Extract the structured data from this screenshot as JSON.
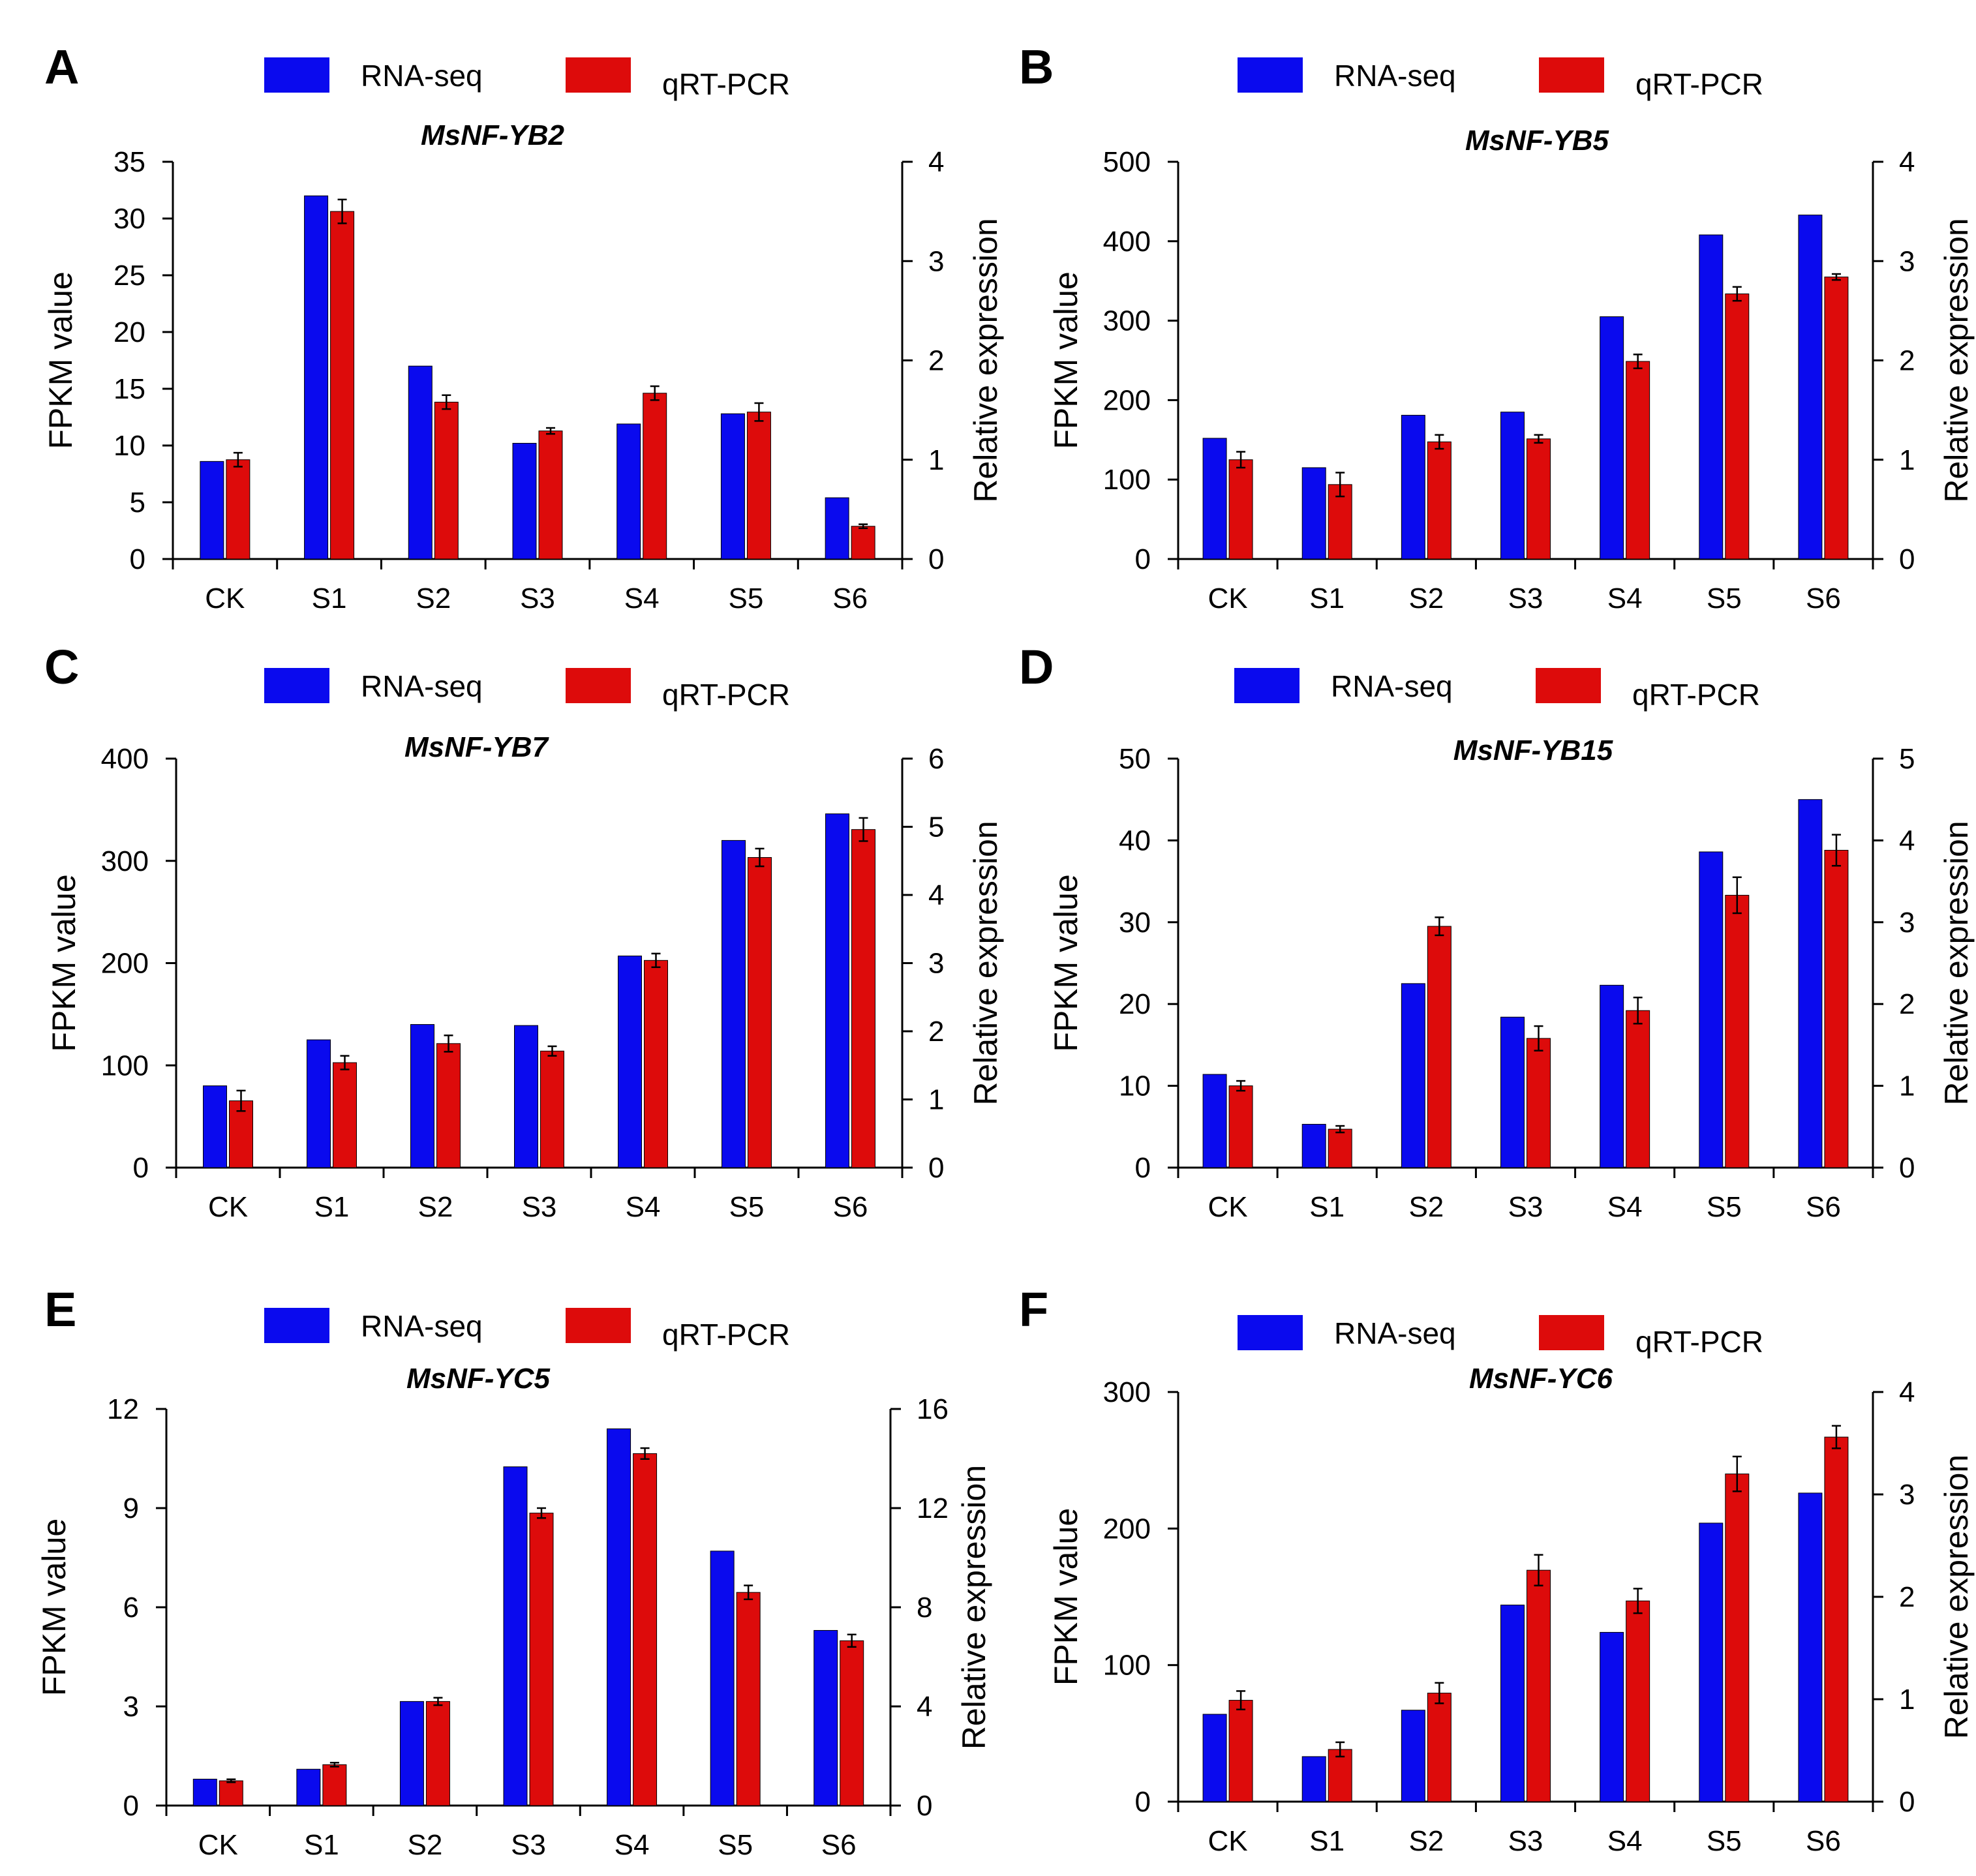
{
  "figure": {
    "legend": [
      "RNA-seq",
      "qRT-PCR"
    ]
  },
  "colors": {
    "rnaseq": "#0a0aee",
    "qrtpcr": "#dd0b0b",
    "axis": "#000000"
  },
  "chart_data": [
    {
      "panel": "A",
      "type": "bar",
      "title": "MsNF-YB2",
      "categories": [
        "CK",
        "S1",
        "S2",
        "S3",
        "S4",
        "S5",
        "S6"
      ],
      "ylabel": "FPKM value",
      "y2label": "Relative expression",
      "ylim": [
        0,
        35
      ],
      "yticks": [
        0,
        5,
        10,
        15,
        20,
        25,
        30,
        35
      ],
      "y2lim": [
        0,
        4
      ],
      "y2ticks": [
        0,
        1,
        2,
        3,
        4
      ],
      "series": [
        {
          "name": "RNA-seq",
          "axis": "left",
          "values": [
            8.6,
            32,
            17,
            10.2,
            11.9,
            12.8,
            5.4
          ]
        },
        {
          "name": "qRT-PCR",
          "axis": "right",
          "values": [
            1.0,
            3.5,
            1.58,
            1.29,
            1.67,
            1.48,
            0.33
          ],
          "errors": [
            0.07,
            0.12,
            0.07,
            0.03,
            0.07,
            0.09,
            0.02
          ]
        }
      ]
    },
    {
      "panel": "B",
      "type": "bar",
      "title": "MsNF-YB5",
      "categories": [
        "CK",
        "S1",
        "S2",
        "S3",
        "S4",
        "S5",
        "S6"
      ],
      "ylabel": "FPKM value",
      "y2label": "Relative expression",
      "ylim": [
        0,
        500
      ],
      "yticks": [
        0,
        100,
        200,
        300,
        400,
        500
      ],
      "y2lim": [
        0,
        4
      ],
      "y2ticks": [
        0,
        1,
        2,
        3,
        4
      ],
      "series": [
        {
          "name": "RNA-seq",
          "axis": "left",
          "values": [
            152,
            115,
            181,
            185,
            305,
            408,
            433
          ]
        },
        {
          "name": "qRT-PCR",
          "axis": "right",
          "values": [
            1.0,
            0.75,
            1.18,
            1.21,
            1.99,
            2.67,
            2.84
          ],
          "errors": [
            0.08,
            0.12,
            0.07,
            0.04,
            0.07,
            0.07,
            0.03
          ]
        }
      ]
    },
    {
      "panel": "C",
      "type": "bar",
      "title": "MsNF-YB7",
      "categories": [
        "CK",
        "S1",
        "S2",
        "S3",
        "S4",
        "S5",
        "S6"
      ],
      "ylabel": "FPKM value",
      "y2label": "Relative expression",
      "ylim": [
        0,
        400
      ],
      "yticks": [
        0,
        100,
        200,
        300,
        400
      ],
      "y2lim": [
        0,
        6
      ],
      "y2ticks": [
        0,
        1,
        2,
        3,
        4,
        5,
        6
      ],
      "series": [
        {
          "name": "RNA-seq",
          "axis": "left",
          "values": [
            80,
            125,
            140,
            139,
            207,
            320,
            346
          ]
        },
        {
          "name": "qRT-PCR",
          "axis": "right",
          "values": [
            0.98,
            1.54,
            1.82,
            1.71,
            3.04,
            4.55,
            4.96
          ],
          "errors": [
            0.15,
            0.1,
            0.12,
            0.07,
            0.1,
            0.13,
            0.17
          ]
        }
      ]
    },
    {
      "panel": "D",
      "type": "bar",
      "title": "MsNF-YB15",
      "categories": [
        "CK",
        "S1",
        "S2",
        "S3",
        "S4",
        "S5",
        "S6"
      ],
      "ylabel": "FPKM value",
      "y2label": "Relative expression",
      "ylim": [
        0,
        50
      ],
      "yticks": [
        0,
        10,
        20,
        30,
        40,
        50
      ],
      "y2lim": [
        0,
        5
      ],
      "y2ticks": [
        0,
        1,
        2,
        3,
        4,
        5
      ],
      "series": [
        {
          "name": "RNA-seq",
          "axis": "left",
          "values": [
            11.4,
            5.3,
            22.5,
            18.4,
            22.3,
            38.6,
            45
          ]
        },
        {
          "name": "qRT-PCR",
          "axis": "right",
          "values": [
            1.0,
            0.47,
            2.95,
            1.58,
            1.92,
            3.33,
            3.88
          ],
          "errors": [
            0.06,
            0.04,
            0.11,
            0.15,
            0.16,
            0.22,
            0.19
          ]
        }
      ]
    },
    {
      "panel": "E",
      "type": "bar",
      "title": "MsNF-YC5",
      "categories": [
        "CK",
        "S1",
        "S2",
        "S3",
        "S4",
        "S5",
        "S6"
      ],
      "ylabel": "FPKM value",
      "y2label": "Relative expression",
      "ylim": [
        0,
        12
      ],
      "yticks": [
        0,
        3,
        6,
        9,
        12
      ],
      "y2lim": [
        0,
        16
      ],
      "y2ticks": [
        0,
        4,
        8,
        12,
        16
      ],
      "series": [
        {
          "name": "RNA-seq",
          "axis": "left",
          "values": [
            0.8,
            1.1,
            3.15,
            10.25,
            11.4,
            7.7,
            5.3
          ]
        },
        {
          "name": "qRT-PCR",
          "axis": "right",
          "values": [
            1.0,
            1.65,
            4.2,
            11.8,
            14.2,
            8.6,
            6.65
          ],
          "errors": [
            0.06,
            0.08,
            0.15,
            0.2,
            0.22,
            0.28,
            0.25
          ]
        }
      ]
    },
    {
      "panel": "F",
      "type": "bar",
      "title": "MsNF-YC6",
      "categories": [
        "CK",
        "S1",
        "S2",
        "S3",
        "S4",
        "S5",
        "S6"
      ],
      "ylabel": "FPKM value",
      "y2label": "Relative expression",
      "ylim": [
        0,
        300
      ],
      "yticks": [
        0,
        100,
        200,
        300
      ],
      "y2lim": [
        0,
        4
      ],
      "y2ticks": [
        0,
        1,
        2,
        3,
        4
      ],
      "series": [
        {
          "name": "RNA-seq",
          "axis": "left",
          "values": [
            64,
            33,
            67,
            144,
            124,
            204,
            226
          ]
        },
        {
          "name": "qRT-PCR",
          "axis": "right",
          "values": [
            0.99,
            0.51,
            1.06,
            2.26,
            1.96,
            3.2,
            3.56
          ],
          "errors": [
            0.09,
            0.07,
            0.1,
            0.15,
            0.12,
            0.17,
            0.11
          ]
        }
      ]
    }
  ]
}
